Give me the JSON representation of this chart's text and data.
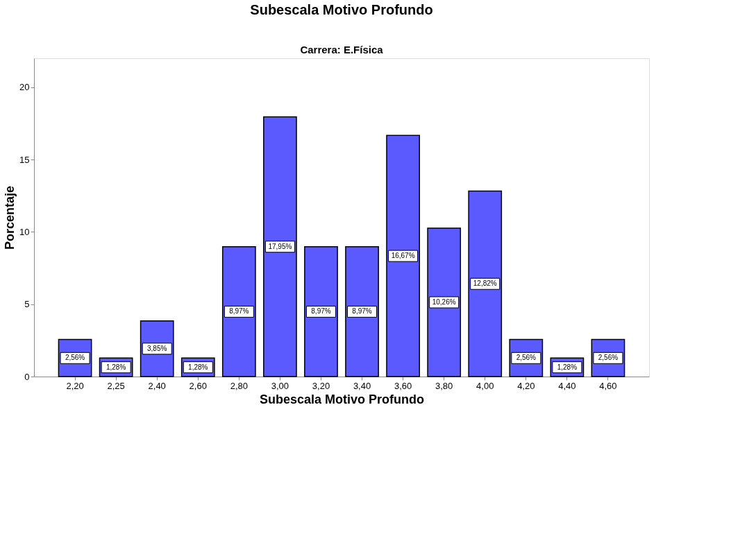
{
  "chart_data": {
    "type": "bar",
    "title": "Subescala Motivo Profundo",
    "subtitle": "Carrera: E.Física",
    "xlabel": "Subescala Motivo Profundo",
    "ylabel": "Porcentaje",
    "categories": [
      "2,20",
      "2,25",
      "2,40",
      "2,60",
      "2,80",
      "3,00",
      "3,20",
      "3,40",
      "3,60",
      "3,80",
      "4,00",
      "4,20",
      "4,40",
      "4,60"
    ],
    "values": [
      2.56,
      1.28,
      3.85,
      1.28,
      8.97,
      17.95,
      8.97,
      8.97,
      16.67,
      10.26,
      12.82,
      2.56,
      1.28,
      2.56
    ],
    "value_labels": [
      "2,56%",
      "1,28%",
      "3,85%",
      "1,28%",
      "8,97%",
      "17,95%",
      "8,97%",
      "8,97%",
      "16,67%",
      "10,26%",
      "12,82%",
      "2,56%",
      "1,28%",
      "2,56%"
    ],
    "color": "#5a5aff",
    "ylim": [
      0,
      22
    ],
    "yticks": [
      0,
      5,
      10,
      15,
      20
    ],
    "grid": false
  }
}
